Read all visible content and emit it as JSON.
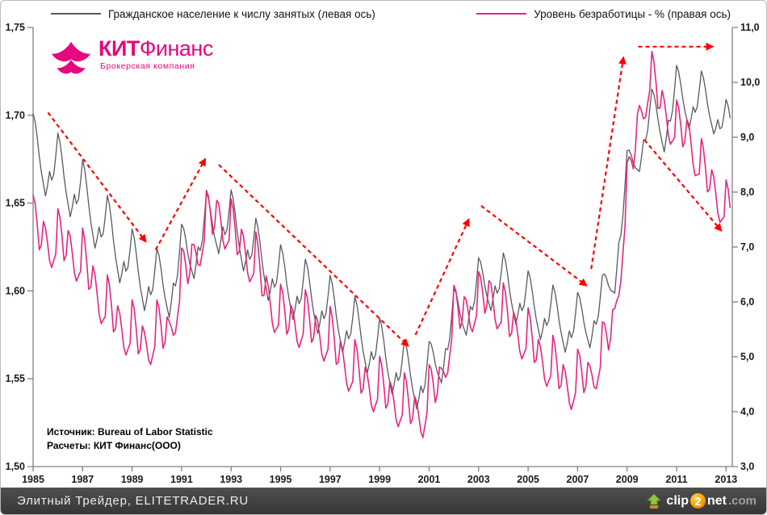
{
  "logo": {
    "brand_bold": "КИТ",
    "brand_rest": "Финанс",
    "subtitle": "Брокерская компания",
    "color": "#e5087e"
  },
  "source": {
    "line1": "Источник: Bureau of Labor Statistic",
    "line2": "Расчеты: КИТ Финанс(ООО)"
  },
  "footer": {
    "site": "Элитный Трейдер, ELITETRADER.RU",
    "clip2net": {
      "part1": "clip",
      "part2": "2",
      "part3": "net",
      "part4": ".com"
    }
  },
  "chart_data": {
    "type": "line",
    "title": "",
    "grid": false,
    "legend_position": "top",
    "legend": [
      {
        "label": "Гражданское население к числу занятых (левая ось)",
        "color": "#5a5a5a"
      },
      {
        "label": "Уровень безработицы - % (правая ось)",
        "color": "#e8247f"
      }
    ],
    "x_axis": {
      "range": [
        1985,
        2013.25
      ],
      "tick_values": [
        1985,
        1987,
        1989,
        1991,
        1993,
        1995,
        1997,
        1999,
        2001,
        2003,
        2005,
        2007,
        2009,
        2011,
        2013
      ],
      "tick_labels": [
        "1985",
        "1987",
        "1989",
        "1991",
        "1993",
        "1995",
        "1997",
        "1999",
        "2001",
        "2003",
        "2005",
        "2007",
        "2009",
        "2011",
        "2013"
      ]
    },
    "left_axis": {
      "range": [
        1.5,
        1.75
      ],
      "tick_values": [
        1.75,
        1.7,
        1.65,
        1.6,
        1.55,
        1.5
      ],
      "tick_labels": [
        "1,75",
        "1,70",
        "1,65",
        "1,60",
        "1,55",
        "1,50"
      ]
    },
    "right_axis": {
      "range": [
        3.0,
        11.0
      ],
      "tick_values": [
        11,
        10,
        9,
        8,
        7,
        6,
        5,
        4,
        3
      ],
      "tick_labels": [
        "11,0",
        "10,0",
        "9,0",
        "8,0",
        "7,0",
        "6,0",
        "5,0",
        "4,0",
        "3,0"
      ]
    },
    "series": [
      {
        "name": "Гражданское население к числу занятых (левая ось)",
        "axis": "left",
        "color": "#5a5a5a",
        "stroke_width": 1.3,
        "sampling": "monthly",
        "start": 1985.0,
        "end": 2013.167,
        "trend_anchors": [
          [
            1985.0,
            1.679
          ],
          [
            1985.5,
            1.674
          ],
          [
            1986.0,
            1.668
          ],
          [
            1986.5,
            1.662
          ],
          [
            1987.0,
            1.653
          ],
          [
            1987.5,
            1.644
          ],
          [
            1988.0,
            1.633
          ],
          [
            1988.5,
            1.624
          ],
          [
            1989.0,
            1.614
          ],
          [
            1989.5,
            1.608
          ],
          [
            1990.0,
            1.603
          ],
          [
            1990.5,
            1.604
          ],
          [
            1991.0,
            1.617
          ],
          [
            1991.5,
            1.626
          ],
          [
            1992.0,
            1.635
          ],
          [
            1992.6,
            1.641
          ],
          [
            1993.0,
            1.637
          ],
          [
            1993.5,
            1.63
          ],
          [
            1994.0,
            1.621
          ],
          [
            1994.5,
            1.613
          ],
          [
            1995.0,
            1.606
          ],
          [
            1995.5,
            1.602
          ],
          [
            1996.0,
            1.598
          ],
          [
            1996.5,
            1.594
          ],
          [
            1997.0,
            1.589
          ],
          [
            1997.5,
            1.583
          ],
          [
            1998.0,
            1.577
          ],
          [
            1998.5,
            1.571
          ],
          [
            1999.0,
            1.565
          ],
          [
            1999.5,
            1.559
          ],
          [
            2000.0,
            1.553
          ],
          [
            2000.75,
            1.549
          ],
          [
            2001.0,
            1.552
          ],
          [
            2001.5,
            1.565
          ],
          [
            2002.0,
            1.582
          ],
          [
            2002.5,
            1.592
          ],
          [
            2003.0,
            1.6
          ],
          [
            2003.6,
            1.607
          ],
          [
            2004.0,
            1.603
          ],
          [
            2004.5,
            1.598
          ],
          [
            2005.0,
            1.593
          ],
          [
            2005.5,
            1.589
          ],
          [
            2006.0,
            1.585
          ],
          [
            2006.75,
            1.58
          ],
          [
            2007.0,
            1.581
          ],
          [
            2007.5,
            1.584
          ],
          [
            2008.0,
            1.591
          ],
          [
            2008.5,
            1.615
          ],
          [
            2009.0,
            1.662
          ],
          [
            2009.5,
            1.684
          ],
          [
            2009.9,
            1.697
          ],
          [
            2010.2,
            1.698
          ],
          [
            2010.5,
            1.695
          ],
          [
            2011.0,
            1.711
          ],
          [
            2011.5,
            1.708
          ],
          [
            2012.0,
            1.708
          ],
          [
            2012.5,
            1.705
          ],
          [
            2013.0,
            1.692
          ],
          [
            2013.25,
            1.69
          ]
        ],
        "seasonal_by_month": [
          0.022,
          0.018,
          0.01,
          0.0,
          -0.008,
          -0.014,
          -0.02,
          -0.013,
          -0.004,
          -0.008,
          -0.004,
          0.008
        ],
        "seasonal_damping_per_year": 0.008,
        "key_points": [
          [
            1985.0,
            1.7
          ],
          [
            1986.0,
            1.69
          ],
          [
            1989.8,
            1.56
          ],
          [
            1992.0,
            1.66
          ],
          [
            1995.0,
            1.62
          ],
          [
            2000.8,
            1.54
          ],
          [
            2003.0,
            1.62
          ],
          [
            2006.8,
            1.57
          ],
          [
            2009.0,
            1.68
          ],
          [
            2010.0,
            1.72
          ],
          [
            2011.0,
            1.733
          ],
          [
            2012.0,
            1.73
          ],
          [
            2013.1,
            1.7
          ]
        ]
      },
      {
        "name": "Уровень безработицы - % (правая ось)",
        "axis": "right",
        "color": "#e8247f",
        "stroke_width": 1.6,
        "sampling": "monthly",
        "start": 1985.0,
        "end": 2013.167,
        "trend_anchors": [
          [
            1985.0,
            7.25
          ],
          [
            1985.5,
            7.15
          ],
          [
            1986.0,
            7.0
          ],
          [
            1986.5,
            7.0
          ],
          [
            1987.0,
            6.65
          ],
          [
            1987.5,
            6.3
          ],
          [
            1988.0,
            5.8
          ],
          [
            1988.5,
            5.6
          ],
          [
            1989.0,
            5.35
          ],
          [
            1989.5,
            5.25
          ],
          [
            1990.0,
            5.35
          ],
          [
            1990.5,
            5.45
          ],
          [
            1991.0,
            6.3
          ],
          [
            1991.5,
            6.85
          ],
          [
            1992.0,
            7.35
          ],
          [
            1992.5,
            7.6
          ],
          [
            1993.0,
            7.2
          ],
          [
            1993.5,
            7.0
          ],
          [
            1994.0,
            6.6
          ],
          [
            1994.5,
            6.1
          ],
          [
            1995.0,
            5.65
          ],
          [
            1995.5,
            5.65
          ],
          [
            1996.0,
            5.55
          ],
          [
            1996.5,
            5.45
          ],
          [
            1997.0,
            5.25
          ],
          [
            1997.5,
            4.95
          ],
          [
            1998.0,
            4.65
          ],
          [
            1998.5,
            4.5
          ],
          [
            1999.0,
            4.35
          ],
          [
            1999.5,
            4.25
          ],
          [
            2000.0,
            4.05
          ],
          [
            2000.75,
            3.95
          ],
          [
            2001.0,
            4.2
          ],
          [
            2001.5,
            4.6
          ],
          [
            2002.0,
            5.65
          ],
          [
            2002.5,
            5.85
          ],
          [
            2003.0,
            5.9
          ],
          [
            2003.5,
            6.15
          ],
          [
            2004.0,
            5.7
          ],
          [
            2004.5,
            5.5
          ],
          [
            2005.0,
            5.25
          ],
          [
            2005.5,
            5.0
          ],
          [
            2006.0,
            4.75
          ],
          [
            2006.75,
            4.45
          ],
          [
            2007.0,
            4.5
          ],
          [
            2007.5,
            4.65
          ],
          [
            2008.0,
            5.0
          ],
          [
            2008.5,
            5.7
          ],
          [
            2009.0,
            7.9
          ],
          [
            2009.5,
            9.4
          ],
          [
            2009.9,
            10.0
          ],
          [
            2010.2,
            9.8
          ],
          [
            2010.5,
            9.5
          ],
          [
            2011.0,
            9.05
          ],
          [
            2011.5,
            9.05
          ],
          [
            2012.0,
            8.35
          ],
          [
            2012.5,
            8.1
          ],
          [
            2013.0,
            7.6
          ],
          [
            2013.25,
            7.5
          ]
        ],
        "seasonal_by_month": [
          0.7,
          0.55,
          0.2,
          -0.25,
          -0.15,
          0.3,
          0.2,
          -0.05,
          -0.35,
          -0.45,
          -0.3,
          -0.15
        ],
        "seasonal_damping_per_year": 0.004,
        "key_points": [
          [
            1985.0,
            8.0
          ],
          [
            1986.0,
            7.7
          ],
          [
            1989.8,
            4.9
          ],
          [
            1992.0,
            8.1
          ],
          [
            1992.5,
            7.9
          ],
          [
            1995.0,
            6.3
          ],
          [
            2000.8,
            3.6
          ],
          [
            2002.0,
            6.3
          ],
          [
            2003.5,
            6.5
          ],
          [
            2006.8,
            4.1
          ],
          [
            2009.0,
            8.6
          ],
          [
            2010.0,
            10.6
          ],
          [
            2011.0,
            9.8
          ],
          [
            2012.0,
            9.1
          ],
          [
            2013.1,
            7.7
          ]
        ]
      }
    ],
    "trend_arrows": [
      {
        "axis": "right",
        "from": [
          1985.6,
          9.45
        ],
        "to": [
          1989.55,
          7.1
        ]
      },
      {
        "axis": "right",
        "from": [
          1989.95,
          6.95
        ],
        "to": [
          1991.95,
          8.6
        ]
      },
      {
        "axis": "right",
        "from": [
          1992.5,
          8.5
        ],
        "to": [
          2000.15,
          5.2
        ]
      },
      {
        "axis": "right",
        "from": [
          2000.45,
          5.4
        ],
        "to": [
          2002.6,
          7.5
        ]
      },
      {
        "axis": "right",
        "from": [
          2003.1,
          7.75
        ],
        "to": [
          2007.35,
          6.3
        ]
      },
      {
        "axis": "right",
        "from": [
          2007.55,
          6.6
        ],
        "to": [
          2008.85,
          10.45
        ]
      },
      {
        "axis": "right",
        "from": [
          2009.45,
          10.65
        ],
        "to": [
          2012.45,
          10.65
        ]
      },
      {
        "axis": "right",
        "from": [
          2009.7,
          8.95
        ],
        "to": [
          2012.8,
          7.3
        ]
      }
    ],
    "arrow_color": "#ff0000",
    "axis_color": "#808080",
    "tick_label_color": "#1a1a1a"
  }
}
